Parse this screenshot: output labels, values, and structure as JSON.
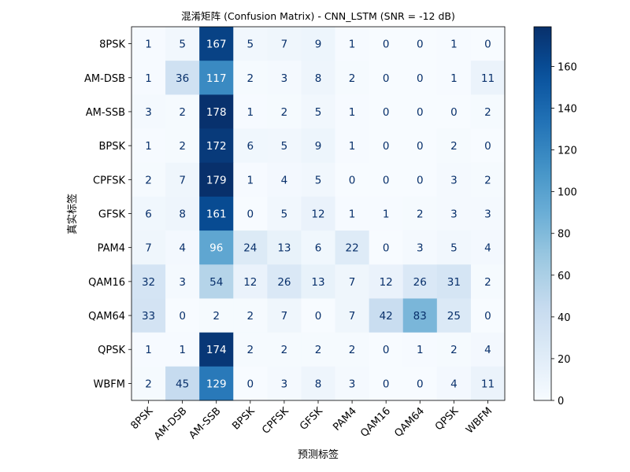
{
  "chart_data": {
    "type": "heatmap",
    "title": "混淆矩阵 (Confusion Matrix) - CNN_LSTM (SNR = -12 dB)",
    "xlabel": "预测标签",
    "ylabel": "真实标签",
    "categories": [
      "8PSK",
      "AM-DSB",
      "AM-SSB",
      "BPSK",
      "CPFSK",
      "GFSK",
      "PAM4",
      "QAM16",
      "QAM64",
      "QPSK",
      "WBFM"
    ],
    "rows": [
      "8PSK",
      "AM-DSB",
      "AM-SSB",
      "BPSK",
      "CPFSK",
      "GFSK",
      "PAM4",
      "QAM16",
      "QAM64",
      "QPSK",
      "WBFM"
    ],
    "values": [
      [
        1,
        5,
        167,
        5,
        7,
        9,
        1,
        0,
        0,
        1,
        0
      ],
      [
        1,
        36,
        117,
        2,
        3,
        8,
        2,
        0,
        0,
        1,
        11
      ],
      [
        3,
        2,
        178,
        1,
        2,
        5,
        1,
        0,
        0,
        0,
        2
      ],
      [
        1,
        2,
        172,
        6,
        5,
        9,
        1,
        0,
        0,
        2,
        0
      ],
      [
        2,
        7,
        179,
        1,
        4,
        5,
        0,
        0,
        0,
        3,
        2
      ],
      [
        6,
        8,
        161,
        0,
        5,
        12,
        1,
        1,
        2,
        3,
        3
      ],
      [
        7,
        4,
        96,
        24,
        13,
        6,
        22,
        0,
        3,
        5,
        4
      ],
      [
        32,
        3,
        54,
        12,
        26,
        13,
        7,
        12,
        26,
        31,
        2
      ],
      [
        33,
        0,
        2,
        2,
        7,
        0,
        7,
        42,
        83,
        25,
        0
      ],
      [
        1,
        1,
        174,
        2,
        2,
        2,
        2,
        0,
        1,
        2,
        4
      ],
      [
        2,
        45,
        129,
        0,
        3,
        8,
        3,
        0,
        0,
        4,
        11
      ]
    ],
    "colormap": "Blues",
    "vmin": 0,
    "vmax": 179,
    "colorbar": {
      "ticks": [
        0,
        20,
        40,
        60,
        80,
        100,
        120,
        140,
        160
      ]
    },
    "text_colors": {
      "light": "#ffffff",
      "dark": "#08306b"
    }
  }
}
